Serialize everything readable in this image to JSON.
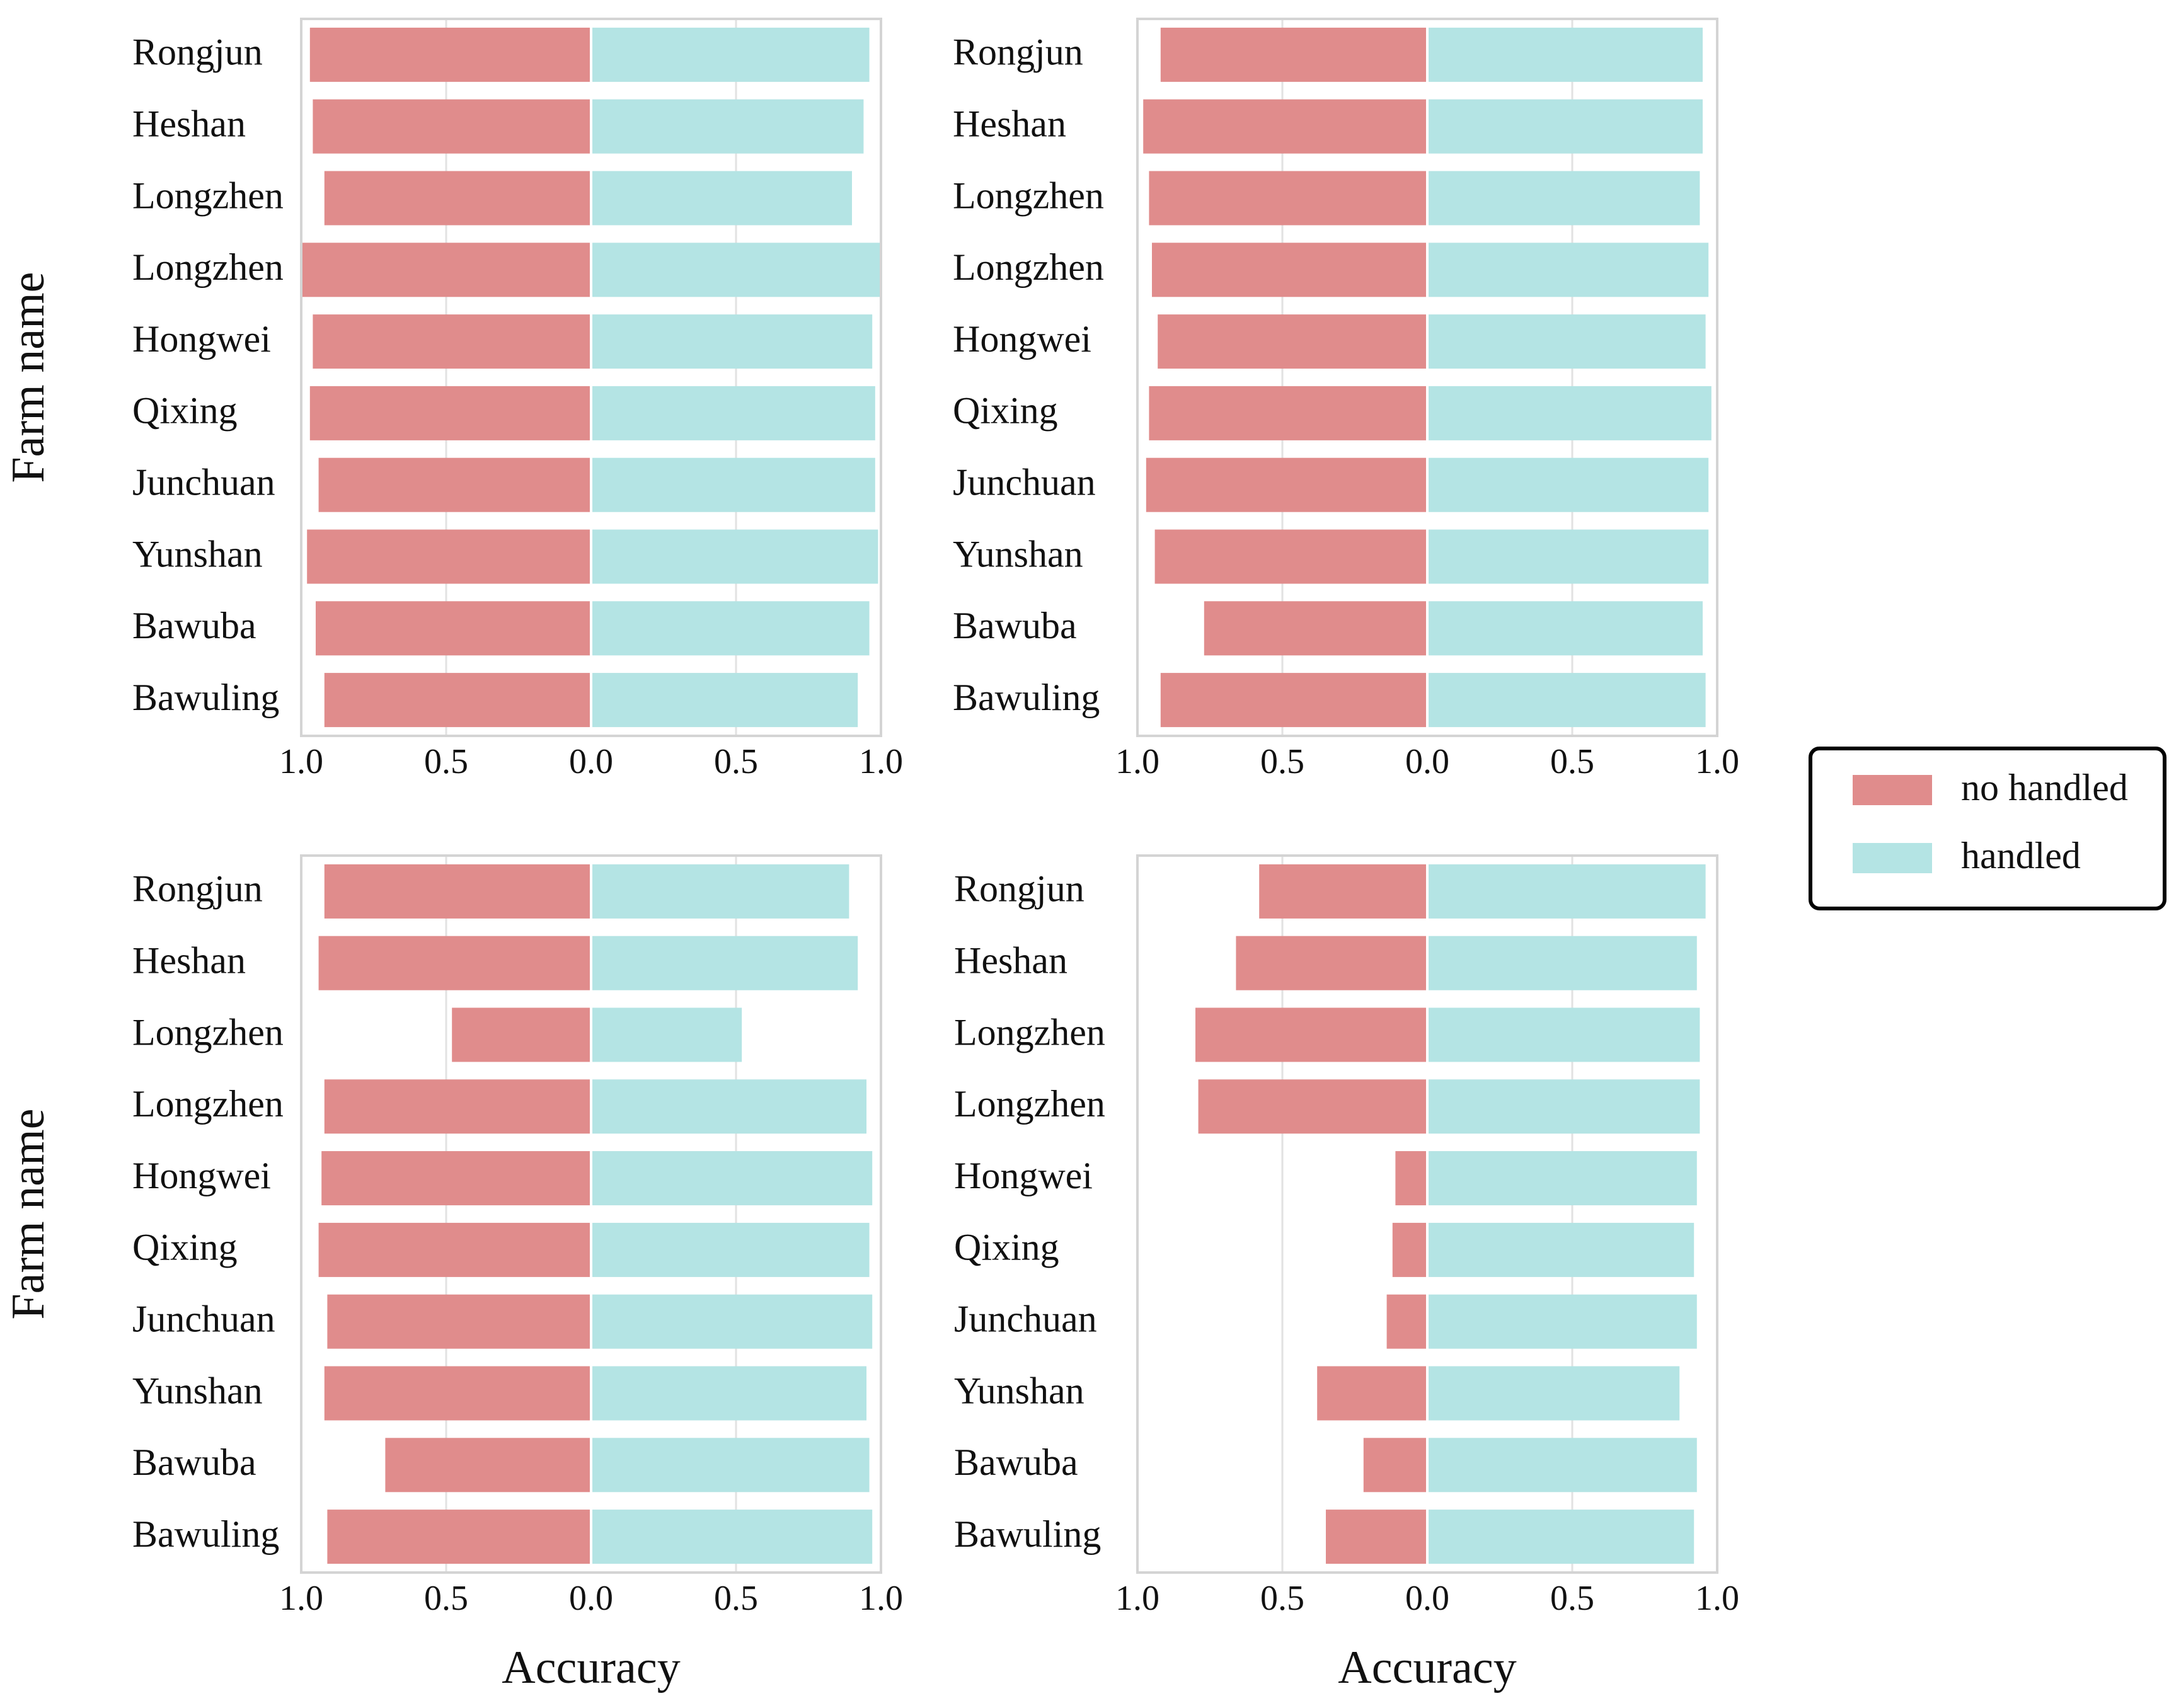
{
  "colors": {
    "no_handled": "#e08c8c",
    "handled": "#b4e4e4",
    "frame": "#d4d4d4",
    "grid": "#e2e2e2",
    "text": "#111111",
    "legend_border": "#000000"
  },
  "legend": {
    "items": [
      {
        "key": "no_handled",
        "label": "no handled"
      },
      {
        "key": "handled",
        "label": "handled"
      }
    ],
    "placement": "right-middle"
  },
  "chart_data": [
    {
      "type": "bar",
      "orientation": "horizontal-diverging",
      "panel": "top-left",
      "categories": [
        "Rongjun",
        "Heshan",
        "Longzhen",
        "Longzhen",
        "Hongwei",
        "Qixing",
        "Junchuan",
        "Yunshan",
        "Bawuba",
        "Bawuling"
      ],
      "series": [
        {
          "name": "no handled",
          "values": [
            0.97,
            0.96,
            0.92,
            1.0,
            0.96,
            0.97,
            0.94,
            0.98,
            0.95,
            0.92
          ]
        },
        {
          "name": "handled",
          "values": [
            0.96,
            0.94,
            0.9,
            1.0,
            0.97,
            0.98,
            0.98,
            0.99,
            0.96,
            0.92
          ]
        }
      ],
      "ylabel": "Farm name",
      "xlabel": "",
      "xticks": [
        "1.0",
        "0.5",
        "0.0",
        "0.5",
        "1.0"
      ],
      "xlim": [
        -1,
        1
      ]
    },
    {
      "type": "bar",
      "orientation": "horizontal-diverging",
      "panel": "top-right",
      "categories": [
        "Rongjun",
        "Heshan",
        "Longzhen",
        "Longzhen",
        "Hongwei",
        "Qixing",
        "Junchuan",
        "Yunshan",
        "Bawuba",
        "Bawuling"
      ],
      "series": [
        {
          "name": "no handled",
          "values": [
            0.92,
            0.98,
            0.96,
            0.95,
            0.93,
            0.96,
            0.97,
            0.94,
            0.77,
            0.92
          ]
        },
        {
          "name": "handled",
          "values": [
            0.95,
            0.95,
            0.94,
            0.97,
            0.96,
            0.98,
            0.97,
            0.97,
            0.95,
            0.96
          ]
        }
      ],
      "ylabel": "",
      "xlabel": "",
      "xticks": [
        "1.0",
        "0.5",
        "0.0",
        "0.5",
        "1.0"
      ],
      "xlim": [
        -1,
        1
      ]
    },
    {
      "type": "bar",
      "orientation": "horizontal-diverging",
      "panel": "bottom-left",
      "categories": [
        "Rongjun",
        "Heshan",
        "Longzhen",
        "Longzhen",
        "Hongwei",
        "Qixing",
        "Junchuan",
        "Yunshan",
        "Bawuba",
        "Bawuling"
      ],
      "series": [
        {
          "name": "no handled",
          "values": [
            0.92,
            0.94,
            0.48,
            0.92,
            0.93,
            0.94,
            0.91,
            0.92,
            0.71,
            0.91
          ]
        },
        {
          "name": "handled",
          "values": [
            0.89,
            0.92,
            0.52,
            0.95,
            0.97,
            0.96,
            0.97,
            0.95,
            0.96,
            0.97
          ]
        }
      ],
      "ylabel": "Farm name",
      "xlabel": "Accuracy",
      "xticks": [
        "1.0",
        "0.5",
        "0.0",
        "0.5",
        "1.0"
      ],
      "xlim": [
        -1,
        1
      ]
    },
    {
      "type": "bar",
      "orientation": "horizontal-diverging",
      "panel": "bottom-right",
      "categories": [
        "Rongjun",
        "Heshan",
        "Longzhen",
        "Longzhen",
        "Hongwei",
        "Qixing",
        "Junchuan",
        "Yunshan",
        "Bawuba",
        "Bawuling"
      ],
      "series": [
        {
          "name": "no handled",
          "values": [
            0.58,
            0.66,
            0.8,
            0.79,
            0.11,
            0.12,
            0.14,
            0.38,
            0.22,
            0.35
          ]
        },
        {
          "name": "handled",
          "values": [
            0.96,
            0.93,
            0.94,
            0.94,
            0.93,
            0.92,
            0.93,
            0.87,
            0.93,
            0.92
          ]
        }
      ],
      "ylabel": "",
      "xlabel": "Accuracy",
      "xticks": [
        "1.0",
        "0.5",
        "0.0",
        "0.5",
        "1.0"
      ],
      "xlim": [
        -1,
        1
      ]
    }
  ]
}
